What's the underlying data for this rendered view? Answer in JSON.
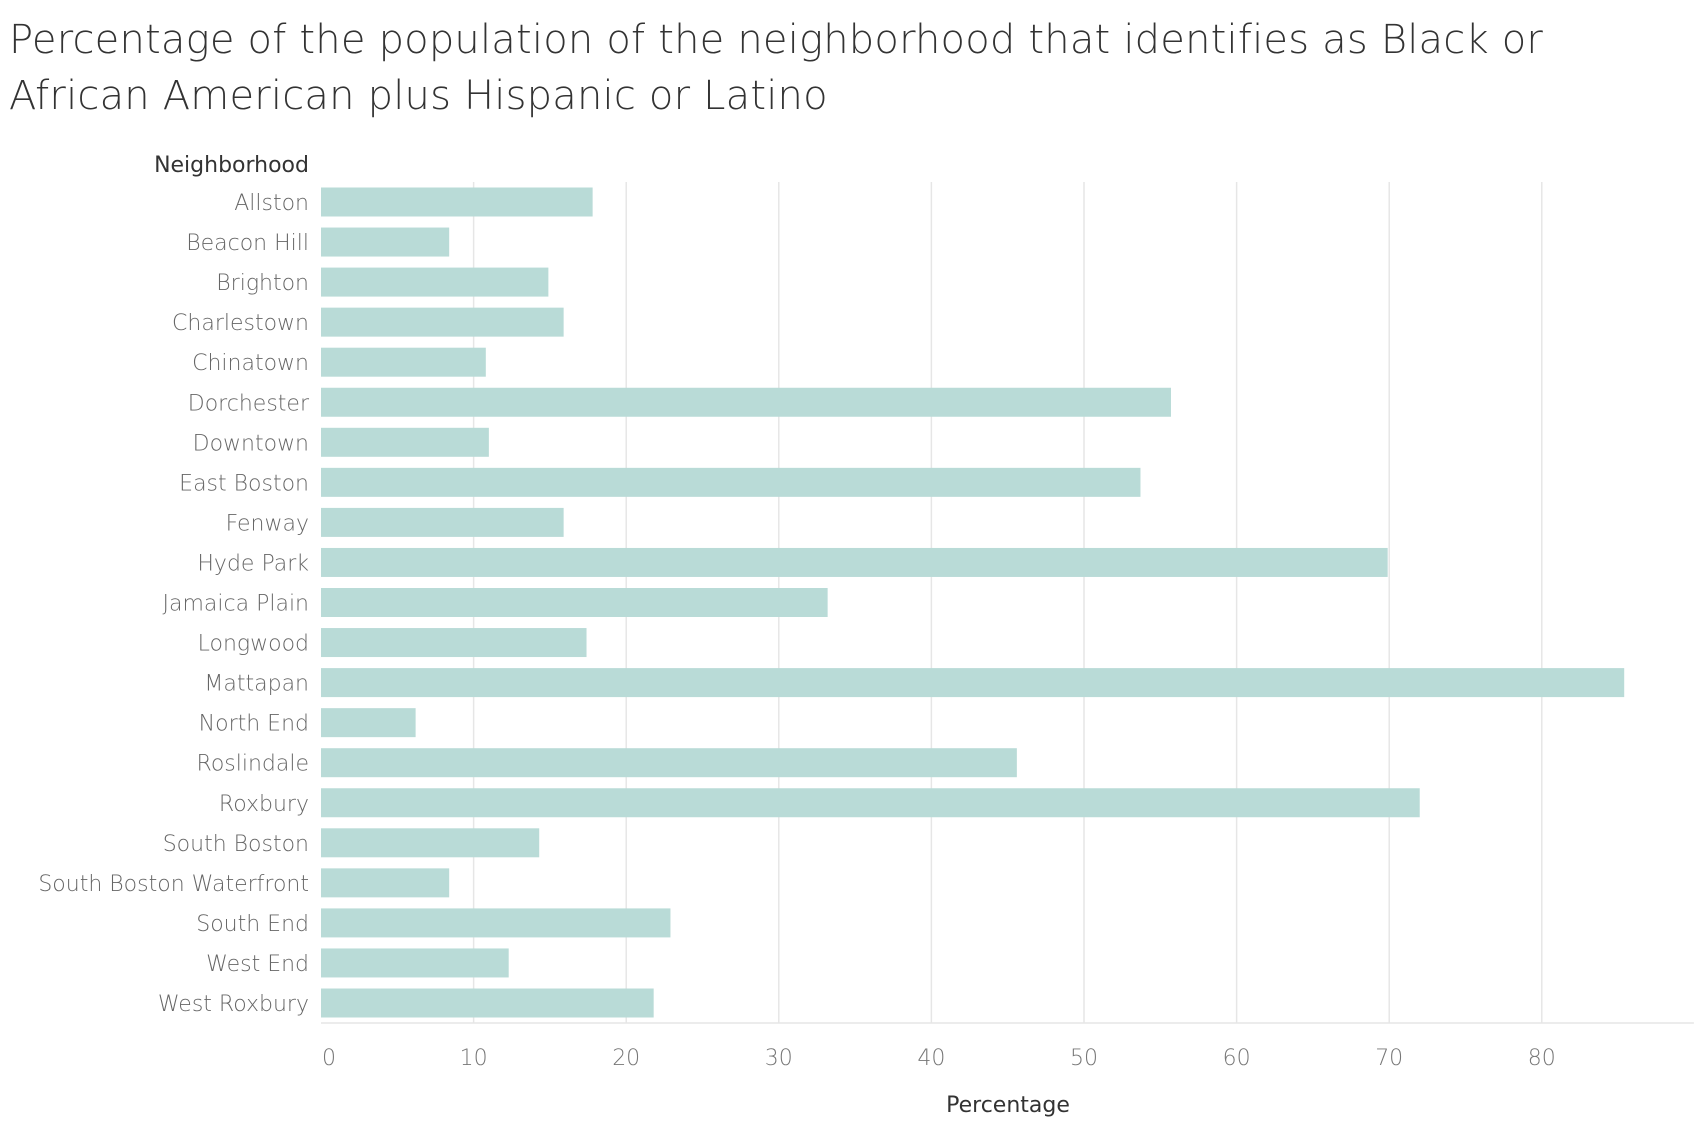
{
  "chart_data": {
    "type": "bar",
    "orientation": "horizontal",
    "title": "Percentage of the population of the neighborhood that identifies as Black or African American plus Hispanic or Latino",
    "row_header": "Neighborhood",
    "xlabel": "Percentage",
    "xlim": [
      0,
      88
    ],
    "xticks": [
      0,
      10,
      20,
      30,
      40,
      50,
      60,
      70,
      80
    ],
    "grid": true,
    "bar_color": "#b9dbd7",
    "categories": [
      "Allston",
      "Beacon Hill",
      "Brighton",
      "Charlestown",
      "Chinatown",
      "Dorchester",
      "Downtown",
      "East Boston",
      "Fenway",
      "Hyde Park",
      "Jamaica Plain",
      "Longwood",
      "Mattapan",
      "North End",
      "Roslindale",
      "Roxbury",
      "South Boston",
      "South Boston Waterfront",
      "South End",
      "West End",
      "West Roxbury"
    ],
    "values": [
      17.8,
      8.4,
      14.9,
      15.9,
      10.8,
      55.7,
      11.0,
      53.7,
      15.9,
      69.9,
      33.2,
      17.4,
      85.4,
      6.2,
      45.6,
      72.0,
      14.3,
      8.4,
      22.9,
      12.3,
      21.8
    ]
  }
}
